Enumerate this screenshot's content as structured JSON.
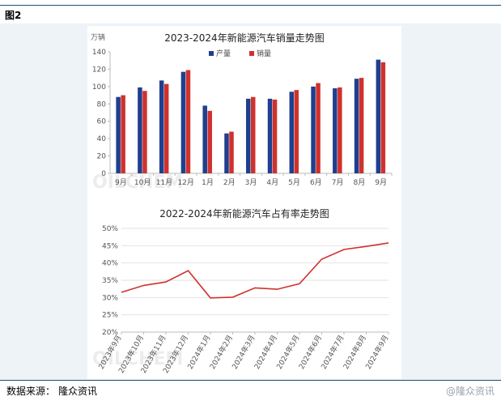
{
  "figure_label": "图2",
  "source": {
    "label": "数据来源：",
    "value": "隆众资讯"
  },
  "brand": "@隆众资讯",
  "watermark": "OILCHEM",
  "chart_data": [
    {
      "type": "bar",
      "title": "2023-2024年新能源汽车销量走势图",
      "ylabel": "万辆",
      "ylim": [
        0,
        140
      ],
      "yticks": [
        0,
        20,
        40,
        60,
        80,
        100,
        120,
        140
      ],
      "categories": [
        "9月",
        "10月",
        "11月",
        "12月",
        "1月",
        "2月",
        "3月",
        "4月",
        "5月",
        "6月",
        "7月",
        "8月",
        "9月"
      ],
      "series": [
        {
          "name": "产量",
          "color": "#1f3f8f",
          "values": [
            88,
            99,
            107,
            117,
            78,
            46,
            86,
            86,
            94,
            100,
            98,
            109,
            131
          ]
        },
        {
          "name": "销量",
          "color": "#d0312d",
          "values": [
            90,
            95,
            103,
            119,
            72,
            48,
            88,
            85,
            96,
            104,
            99,
            110,
            128
          ]
        }
      ],
      "legend": "top-center",
      "grid": false
    },
    {
      "type": "line",
      "title": "2022-2024年新能源汽车占有率走势图",
      "ylim": [
        20,
        50
      ],
      "yticks": [
        "20%",
        "25%",
        "30%",
        "35%",
        "40%",
        "45%",
        "50%"
      ],
      "categories": [
        "2023年9月",
        "2023年10月",
        "2023年11月",
        "2023年12月",
        "2024年1月",
        "2024年2月",
        "2024年3月",
        "2024年4月",
        "2024年5月",
        "2024年6月",
        "2024年7月",
        "2024年8月",
        "2024年9月"
      ],
      "series": [
        {
          "color": "#d0312d",
          "values": [
            31.5,
            33.5,
            34.5,
            37.8,
            29.9,
            30.1,
            32.8,
            32.4,
            34.0,
            41.1,
            43.9,
            44.8,
            45.8
          ]
        }
      ],
      "grid": true
    }
  ]
}
